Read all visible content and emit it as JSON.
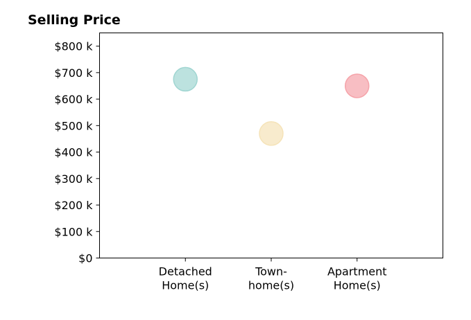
{
  "chart_data": {
    "type": "scatter",
    "title": "Selling Price",
    "xlabel": "",
    "ylabel": "",
    "categories": [
      [
        "Detached",
        "Home(s)"
      ],
      [
        "Town-",
        "home(s)"
      ],
      [
        "Apartment",
        "Home(s)"
      ]
    ],
    "values": [
      675000,
      470000,
      650000
    ],
    "colors": [
      "#9fd5d1",
      "#f5e3b8",
      "#f5a3a9"
    ],
    "ylim": [
      0,
      850000
    ],
    "yticks": [
      {
        "value": 0,
        "label": "$0"
      },
      {
        "value": 100000,
        "label": "$100 k"
      },
      {
        "value": 200000,
        "label": "$200 k"
      },
      {
        "value": 300000,
        "label": "$300 k"
      },
      {
        "value": 400000,
        "label": "$400 k"
      },
      {
        "value": 500000,
        "label": "$500 k"
      },
      {
        "value": 600000,
        "label": "$600 k"
      },
      {
        "value": 700000,
        "label": "$700 k"
      },
      {
        "value": 800000,
        "label": "$800 k"
      }
    ],
    "grid": false,
    "legend": "none"
  }
}
